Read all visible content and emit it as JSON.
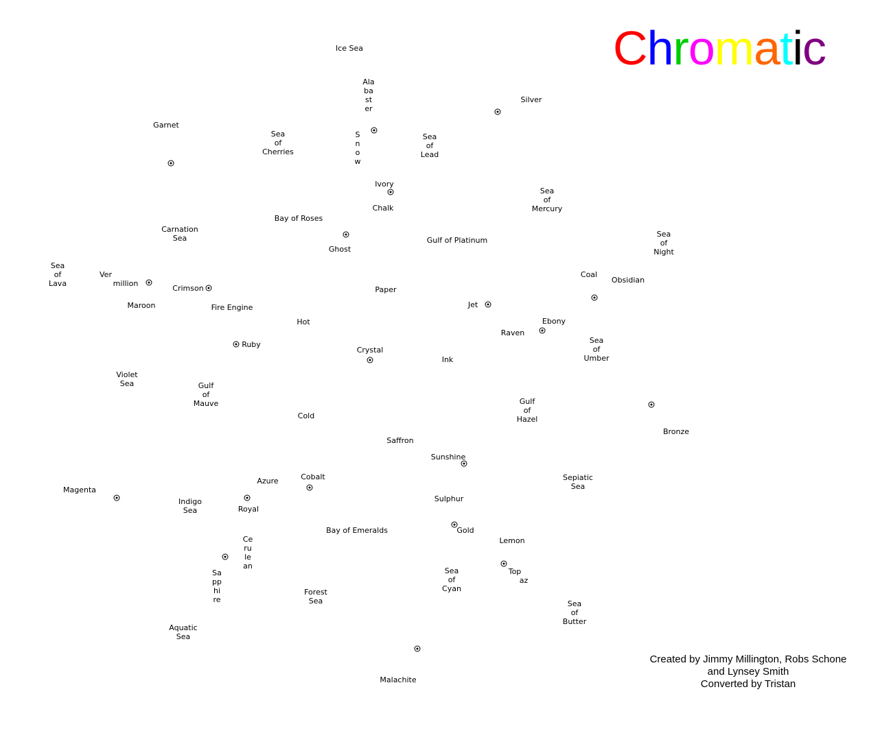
{
  "title": {
    "letters": [
      {
        "ch": "C",
        "color": "#ff0000"
      },
      {
        "ch": "h",
        "color": "#0000ff"
      },
      {
        "ch": "r",
        "color": "#00cc00"
      },
      {
        "ch": "o",
        "color": "#ff00ff"
      },
      {
        "ch": "m",
        "color": "#ffff00"
      },
      {
        "ch": "a",
        "color": "#ff6600"
      },
      {
        "ch": "t",
        "color": "#00ffff"
      },
      {
        "ch": "i",
        "color": "#000000"
      },
      {
        "ch": "c",
        "color": "#800080"
      }
    ]
  },
  "credits": {
    "line1": "Created by Jimmy Millington, Robs Schone",
    "line2": "and Lynsey Smith",
    "line3": "Converted by Tristan"
  },
  "labels": [
    "Ice Sea",
    "Ala\nba\nst\ner",
    "Silver",
    "Garnet",
    "Sea\nof\nCherries",
    "S\nn\no\nw",
    "Sea\nof\nLead",
    "Ivory",
    "Chalk",
    "Sea\nof\nMercury",
    "Bay of Roses",
    "Carnation\nSea",
    "Ghost",
    "Gulf of Platinum",
    "Sea\nof\nNight",
    "Sea\nof\nLava",
    "Ver",
    "million",
    "Crimson",
    "Coal",
    "Obsidian",
    "Paper",
    "Maroon",
    "Fire Engine",
    "Jet",
    "Hot",
    "Ebony",
    "Raven",
    "Ruby",
    "Sea\nof\nUmber",
    "Crystal",
    "Ink",
    "Violet\nSea",
    "Gulf\nof\nMauve",
    "Gulf\nof\nHazel",
    "Cold",
    "Bronze",
    "Saffron",
    "Sunshine",
    "Azure",
    "Cobalt",
    "Sepiatic\nSea",
    "Magenta",
    "Indigo\nSea",
    "Royal",
    "Sulphur",
    "Bay of Emeralds",
    "Gold",
    "Lemon",
    "Ce\nru\nle\nan",
    "Sea\nof\nCyan",
    "Top",
    "az",
    "Sa\npp\nhi\nre",
    "Forest\nSea",
    "Sea\nof\nButter",
    "Aquatic\nSea",
    "Malachite"
  ],
  "supply_centers": [
    "Silver",
    "Snow",
    "Garnet",
    "Ivory",
    "Ghost",
    "Vermillion",
    "Crimson",
    "Coal",
    "Jet",
    "Ebony",
    "Ruby",
    "Crystal",
    "Bronze",
    "Sunshine",
    "Cobalt",
    "Magenta",
    "Royal",
    "Gold",
    "Topaz",
    "Cerulean",
    "Malachite"
  ]
}
